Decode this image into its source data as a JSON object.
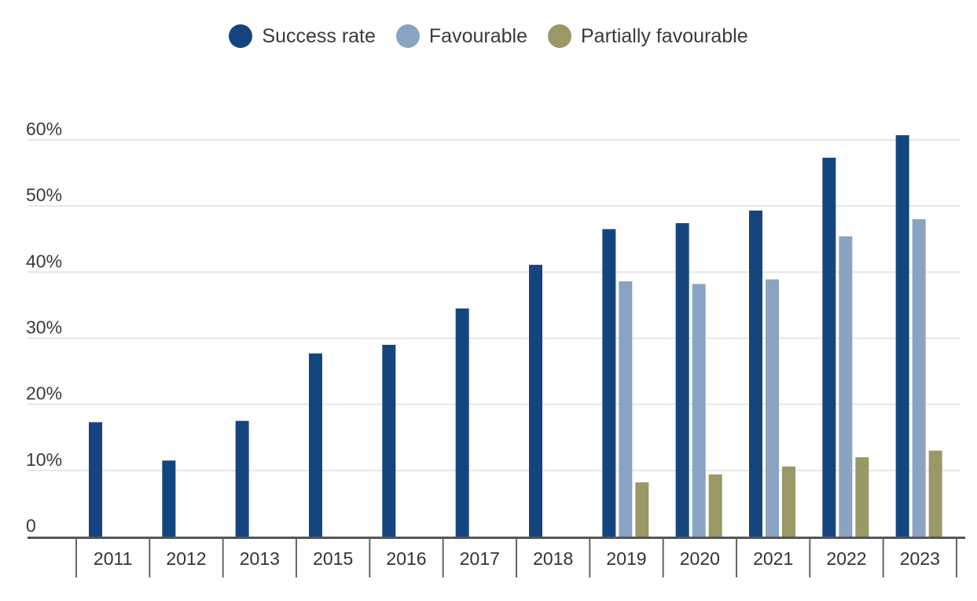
{
  "chart_data": {
    "type": "bar",
    "title": "",
    "xlabel": "",
    "ylabel": "",
    "ylim": [
      0,
      60
    ],
    "yticks": [
      0,
      10,
      20,
      30,
      40,
      50,
      60
    ],
    "ytick_labels": [
      "0",
      "10%",
      "20%",
      "30%",
      "40%",
      "50%",
      "60%"
    ],
    "grid": true,
    "legend_position": "top-center",
    "categories": [
      "2011",
      "2012",
      "2013",
      "2015",
      "2016",
      "2017",
      "2018",
      "2019",
      "2020",
      "2021",
      "2022",
      "2023"
    ],
    "series": [
      {
        "name": "Success rate",
        "color": "#15457f",
        "values": [
          17.3,
          11.5,
          17.5,
          27.7,
          29.0,
          34.5,
          41.1,
          46.5,
          47.4,
          49.3,
          57.3,
          60.7
        ]
      },
      {
        "name": "Favourable",
        "color": "#8aa3c2",
        "values": [
          null,
          null,
          null,
          null,
          null,
          null,
          null,
          38.6,
          38.2,
          38.9,
          45.4,
          48.0
        ]
      },
      {
        "name": "Partially favourable",
        "color": "#999866",
        "values": [
          null,
          null,
          null,
          null,
          null,
          null,
          null,
          8.2,
          9.4,
          10.6,
          12.0,
          13.0
        ]
      }
    ]
  }
}
